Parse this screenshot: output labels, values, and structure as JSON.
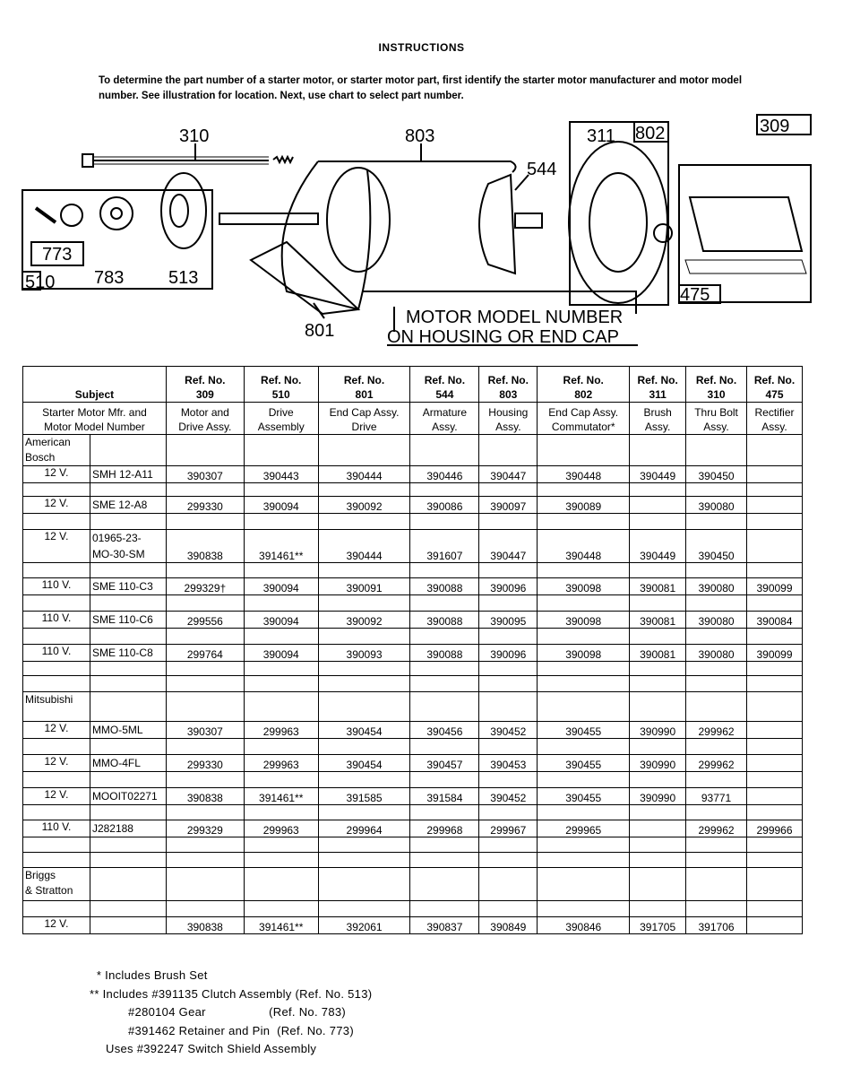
{
  "title": "INSTRUCTIONS",
  "intro": "To determine the part number of a starter motor, or starter motor part, first identify the starter motor manufacturer and motor model number. See illustration for location. Next, use chart to select part number.",
  "illustration": {
    "labels": {
      "r310": "310",
      "r803": "803",
      "r544": "544",
      "r311": "311",
      "r802": "802",
      "r309": "309",
      "r773": "773",
      "r510": "510",
      "r783": "783",
      "r513": "513",
      "r801": "801",
      "r475": "475"
    },
    "callout_line1": "MOTOR MODEL NUMBER",
    "callout_line2": "ON HOUSING OR END CAP"
  },
  "table": {
    "subject": "Subject",
    "subject_sub": [
      "Starter Motor Mfr. and",
      "Motor Model Number"
    ],
    "columns": [
      {
        "ref": "Ref. No.",
        "num": "309",
        "desc": [
          "Motor and",
          "Drive Assy."
        ]
      },
      {
        "ref": "Ref. No.",
        "num": "510",
        "desc": [
          "Drive",
          "Assembly"
        ]
      },
      {
        "ref": "Ref. No.",
        "num": "801",
        "desc": [
          "End Cap Assy.",
          "Drive"
        ]
      },
      {
        "ref": "Ref. No.",
        "num": "544",
        "desc": [
          "Armature",
          "Assy."
        ]
      },
      {
        "ref": "Ref. No.",
        "num": "803",
        "desc": [
          "Housing",
          "Assy."
        ]
      },
      {
        "ref": "Ref. No.",
        "num": "802",
        "desc": [
          "End Cap Assy.",
          "Commutator*"
        ]
      },
      {
        "ref": "Ref. No.",
        "num": "311",
        "desc": [
          "Brush",
          "Assy."
        ]
      },
      {
        "ref": "Ref. No.",
        "num": "310",
        "desc": [
          "Thru Bolt",
          "Assy."
        ]
      },
      {
        "ref": "Ref. No.",
        "num": "475",
        "desc": [
          "Rectifier",
          "Assy."
        ]
      }
    ],
    "rows": [
      {
        "type": "mfr",
        "name": "American\nBosch",
        "h": 34
      },
      {
        "type": "data",
        "volt": "12 V.",
        "model": "SMH 12-A11",
        "vals": [
          "390307",
          "390443",
          "390444",
          "390446",
          "390447",
          "390448",
          "390449",
          "390450",
          ""
        ],
        "h": 17
      },
      {
        "type": "blank",
        "h": 15
      },
      {
        "type": "data",
        "volt": "12 V.",
        "model": "SME 12-A8",
        "vals": [
          "299330",
          "390094",
          "390092",
          "390086",
          "390097",
          "390089",
          "",
          "390080",
          ""
        ],
        "h": 18
      },
      {
        "type": "blank",
        "h": 18
      },
      {
        "type": "data",
        "volt": "12 V.",
        "model": "01965-23-\nMO-30-SM",
        "vals": [
          "390838",
          "391461**",
          "390444",
          "391607",
          "390447",
          "390448",
          "390449",
          "390450",
          ""
        ],
        "h": 37
      },
      {
        "type": "blank",
        "h": 17
      },
      {
        "type": "data",
        "volt": "110 V.",
        "model": "SME 110-C3",
        "vals": [
          "299329†",
          "390094",
          "390091",
          "390088",
          "390096",
          "390098",
          "390081",
          "390080",
          "390099"
        ],
        "h": 18
      },
      {
        "type": "blank",
        "h": 18
      },
      {
        "type": "data",
        "volt": "110 V.",
        "model": "SME 110-C6",
        "vals": [
          "299556",
          "390094",
          "390092",
          "390088",
          "390095",
          "390098",
          "390081",
          "390080",
          "390084"
        ],
        "h": 18
      },
      {
        "type": "blank",
        "h": 18
      },
      {
        "type": "data",
        "volt": "110 V.",
        "model": "SME 110-C8",
        "vals": [
          "299764",
          "390094",
          "390093",
          "390088",
          "390096",
          "390098",
          "390081",
          "390080",
          "390099"
        ],
        "h": 18
      },
      {
        "type": "blank",
        "h": 16
      },
      {
        "type": "blank",
        "h": 18
      },
      {
        "type": "mfr",
        "name": "Mitsubishi",
        "h": 33
      },
      {
        "type": "data",
        "volt": "12 V.",
        "model": "MMO-5ML",
        "vals": [
          "390307",
          "299963",
          "390454",
          "390456",
          "390452",
          "390455",
          "390990",
          "299962",
          ""
        ],
        "h": 18
      },
      {
        "type": "blank",
        "h": 18
      },
      {
        "type": "data",
        "volt": "12 V.",
        "model": "MMO-4FL",
        "vals": [
          "299330",
          "299963",
          "390454",
          "390457",
          "390453",
          "390455",
          "390990",
          "299962",
          ""
        ],
        "h": 18
      },
      {
        "type": "blank",
        "h": 18
      },
      {
        "type": "data",
        "volt": "12 V.",
        "model": "MOOIT02271",
        "vals": [
          "390838",
          "391461**",
          "391585",
          "391584",
          "390452",
          "390455",
          "390990",
          "93771",
          ""
        ],
        "h": 19
      },
      {
        "type": "blank",
        "h": 17
      },
      {
        "type": "data",
        "volt": "110 V.",
        "model": "J282188",
        "vals": [
          "299329",
          "299963",
          "299964",
          "299968",
          "299967",
          "299965",
          "",
          "299962",
          "299966"
        ],
        "h": 19
      },
      {
        "type": "blank",
        "h": 17
      },
      {
        "type": "blank",
        "h": 17
      },
      {
        "type": "mfr",
        "name": "Briggs\n& Stratton",
        "h": 37
      },
      {
        "type": "blank",
        "h": 18
      },
      {
        "type": "data",
        "volt": "12 V.",
        "model": "",
        "vals": [
          "390838",
          "391461**",
          "392061",
          "390837",
          "390849",
          "390846",
          "391705",
          "391706",
          ""
        ],
        "h": 19
      }
    ]
  },
  "notes": [
    " * Includes Brush Set",
    "** Includes #391135 Clutch Assembly (Ref. No. 513)",
    "           #280104 Gear                  (Ref. No. 783)",
    "           #391462 Retainer and Pin  (Ref. No. 773)",
    "Uses #392247 Switch Shield Assembly"
  ]
}
